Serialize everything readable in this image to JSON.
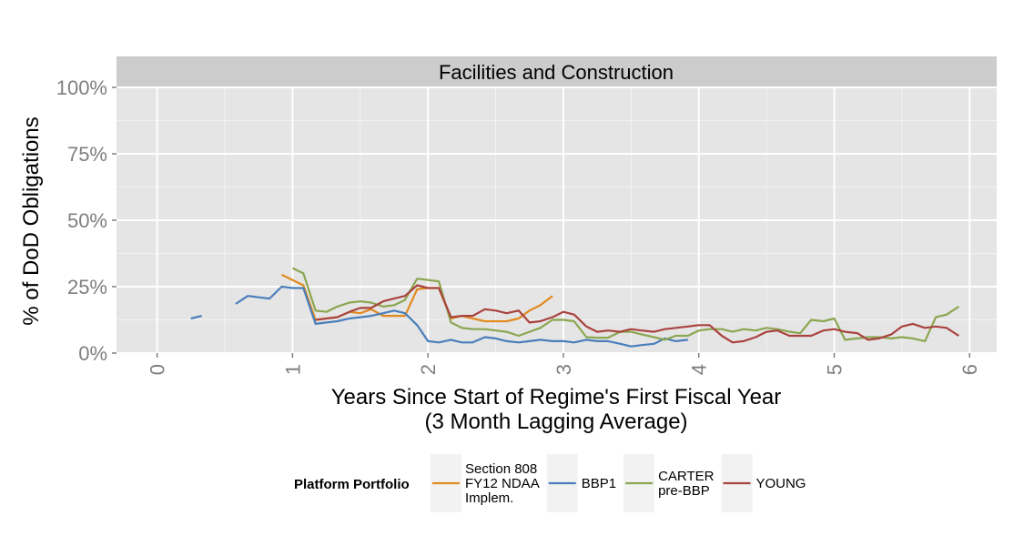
{
  "chart_data": {
    "type": "line",
    "title": "",
    "panel_title": "Facilities and Construction",
    "xlabel_line1": "Years Since Start of Regime's First Fiscal Year",
    "xlabel_line2": "(3 Month Lagging Average)",
    "ylabel": "% of DoD Obligations",
    "xlim": [
      -0.3,
      6.2
    ],
    "ylim": [
      0,
      1.0
    ],
    "x_ticks": [
      0,
      1,
      2,
      3,
      4,
      5,
      6
    ],
    "x_tick_labels": [
      "0",
      "1",
      "2",
      "3",
      "4",
      "5",
      "6"
    ],
    "y_ticks": [
      0,
      0.25,
      0.5,
      0.75,
      1.0
    ],
    "y_tick_labels": [
      "0%",
      "25%",
      "50%",
      "75%",
      "100%"
    ],
    "grid": true,
    "legend": {
      "title": "Platform Portfolio",
      "position": "bottom",
      "entries": [
        {
          "label_lines": [
            "Section 808",
            "FY12 NDAA",
            "Implem."
          ],
          "color": "#E08A1E"
        },
        {
          "label_lines": [
            "BBP1"
          ],
          "color": "#4A7EBB"
        },
        {
          "label_lines": [
            "CARTER",
            "pre-BBP"
          ],
          "color": "#8BA650"
        },
        {
          "label_lines": [
            "YOUNG"
          ],
          "color": "#A9433F"
        }
      ]
    },
    "series": [
      {
        "name": "Section 808 FY12 NDAA Implem.",
        "color": "#E08A1E",
        "segments": [
          [
            [
              0.92,
              0.295
            ],
            [
              1.0,
              0.275
            ],
            [
              1.08,
              0.255
            ],
            [
              1.17,
              0.125
            ],
            [
              1.25,
              0.13
            ],
            [
              1.33,
              0.135
            ],
            [
              1.42,
              0.155
            ],
            [
              1.5,
              0.15
            ],
            [
              1.58,
              0.165
            ],
            [
              1.67,
              0.14
            ],
            [
              1.75,
              0.14
            ],
            [
              1.83,
              0.14
            ],
            [
              1.92,
              0.24
            ],
            [
              2.0,
              0.245
            ],
            [
              2.08,
              0.245
            ],
            [
              2.17,
              0.13
            ],
            [
              2.25,
              0.14
            ],
            [
              2.33,
              0.13
            ],
            [
              2.42,
              0.12
            ],
            [
              2.5,
              0.12
            ],
            [
              2.58,
              0.12
            ],
            [
              2.67,
              0.13
            ],
            [
              2.75,
              0.16
            ],
            [
              2.83,
              0.18
            ],
            [
              2.92,
              0.215
            ]
          ]
        ]
      },
      {
        "name": "BBP1",
        "color": "#4A7EBB",
        "segments": [
          [
            [
              0.25,
              0.13
            ],
            [
              0.33,
              0.14
            ]
          ],
          [
            [
              0.58,
              0.185
            ],
            [
              0.67,
              0.215
            ],
            [
              0.75,
              0.21
            ],
            [
              0.83,
              0.205
            ],
            [
              0.92,
              0.25
            ],
            [
              1.0,
              0.245
            ],
            [
              1.08,
              0.245
            ],
            [
              1.17,
              0.11
            ],
            [
              1.25,
              0.115
            ],
            [
              1.33,
              0.12
            ],
            [
              1.42,
              0.13
            ],
            [
              1.5,
              0.135
            ],
            [
              1.58,
              0.14
            ],
            [
              1.67,
              0.15
            ],
            [
              1.75,
              0.16
            ],
            [
              1.83,
              0.15
            ],
            [
              1.92,
              0.105
            ],
            [
              2.0,
              0.045
            ],
            [
              2.08,
              0.04
            ],
            [
              2.17,
              0.05
            ],
            [
              2.25,
              0.04
            ],
            [
              2.33,
              0.04
            ],
            [
              2.42,
              0.06
            ],
            [
              2.5,
              0.055
            ],
            [
              2.58,
              0.045
            ],
            [
              2.67,
              0.04
            ],
            [
              2.75,
              0.045
            ],
            [
              2.83,
              0.05
            ],
            [
              2.92,
              0.045
            ],
            [
              3.0,
              0.045
            ],
            [
              3.08,
              0.04
            ],
            [
              3.17,
              0.05
            ],
            [
              3.25,
              0.045
            ],
            [
              3.33,
              0.045
            ],
            [
              3.42,
              0.035
            ],
            [
              3.5,
              0.025
            ],
            [
              3.58,
              0.03
            ],
            [
              3.67,
              0.035
            ],
            [
              3.75,
              0.055
            ],
            [
              3.83,
              0.045
            ],
            [
              3.92,
              0.05
            ]
          ]
        ]
      },
      {
        "name": "CARTER pre-BBP",
        "color": "#8BA650",
        "segments": [
          [
            [
              1.0,
              0.32
            ],
            [
              1.08,
              0.3
            ],
            [
              1.17,
              0.16
            ],
            [
              1.25,
              0.155
            ],
            [
              1.33,
              0.175
            ],
            [
              1.42,
              0.19
            ],
            [
              1.5,
              0.195
            ],
            [
              1.58,
              0.19
            ],
            [
              1.67,
              0.175
            ],
            [
              1.75,
              0.18
            ],
            [
              1.83,
              0.2
            ],
            [
              1.92,
              0.28
            ],
            [
              2.0,
              0.275
            ],
            [
              2.08,
              0.27
            ],
            [
              2.17,
              0.115
            ],
            [
              2.25,
              0.095
            ],
            [
              2.33,
              0.09
            ],
            [
              2.42,
              0.09
            ],
            [
              2.5,
              0.085
            ],
            [
              2.58,
              0.08
            ],
            [
              2.67,
              0.065
            ],
            [
              2.75,
              0.08
            ],
            [
              2.83,
              0.095
            ],
            [
              2.92,
              0.125
            ],
            [
              3.0,
              0.125
            ],
            [
              3.08,
              0.12
            ],
            [
              3.17,
              0.06
            ],
            [
              3.25,
              0.058
            ],
            [
              3.33,
              0.058
            ],
            [
              3.42,
              0.08
            ],
            [
              3.5,
              0.08
            ],
            [
              3.58,
              0.07
            ],
            [
              3.67,
              0.06
            ],
            [
              3.75,
              0.05
            ],
            [
              3.83,
              0.065
            ],
            [
              3.92,
              0.065
            ],
            [
              4.0,
              0.085
            ],
            [
              4.08,
              0.09
            ],
            [
              4.17,
              0.09
            ],
            [
              4.25,
              0.08
            ],
            [
              4.33,
              0.09
            ],
            [
              4.42,
              0.085
            ],
            [
              4.5,
              0.095
            ],
            [
              4.58,
              0.09
            ],
            [
              4.67,
              0.08
            ],
            [
              4.75,
              0.075
            ],
            [
              4.83,
              0.125
            ],
            [
              4.92,
              0.12
            ],
            [
              5.0,
              0.13
            ],
            [
              5.08,
              0.05
            ],
            [
              5.17,
              0.055
            ],
            [
              5.25,
              0.06
            ],
            [
              5.33,
              0.06
            ],
            [
              5.42,
              0.055
            ],
            [
              5.5,
              0.06
            ],
            [
              5.58,
              0.055
            ],
            [
              5.67,
              0.045
            ],
            [
              5.75,
              0.135
            ],
            [
              5.83,
              0.145
            ],
            [
              5.92,
              0.175
            ]
          ]
        ]
      },
      {
        "name": "YOUNG",
        "color": "#A9433F",
        "segments": [
          [
            [
              1.17,
              0.125
            ],
            [
              1.25,
              0.13
            ],
            [
              1.33,
              0.135
            ],
            [
              1.42,
              0.155
            ],
            [
              1.5,
              0.17
            ],
            [
              1.58,
              0.17
            ],
            [
              1.67,
              0.195
            ],
            [
              1.75,
              0.205
            ],
            [
              1.83,
              0.215
            ],
            [
              1.92,
              0.255
            ],
            [
              2.0,
              0.245
            ],
            [
              2.08,
              0.245
            ],
            [
              2.17,
              0.135
            ],
            [
              2.25,
              0.14
            ],
            [
              2.33,
              0.14
            ],
            [
              2.42,
              0.165
            ],
            [
              2.5,
              0.16
            ],
            [
              2.58,
              0.15
            ],
            [
              2.67,
              0.16
            ],
            [
              2.75,
              0.115
            ],
            [
              2.83,
              0.12
            ],
            [
              2.92,
              0.135
            ],
            [
              3.0,
              0.155
            ],
            [
              3.08,
              0.145
            ],
            [
              3.17,
              0.1
            ],
            [
              3.25,
              0.08
            ],
            [
              3.33,
              0.085
            ],
            [
              3.42,
              0.08
            ],
            [
              3.5,
              0.09
            ],
            [
              3.58,
              0.085
            ],
            [
              3.67,
              0.08
            ],
            [
              3.75,
              0.09
            ],
            [
              3.83,
              0.095
            ],
            [
              3.92,
              0.1
            ],
            [
              4.0,
              0.105
            ],
            [
              4.08,
              0.105
            ],
            [
              4.17,
              0.065
            ],
            [
              4.25,
              0.04
            ],
            [
              4.33,
              0.045
            ],
            [
              4.42,
              0.06
            ],
            [
              4.5,
              0.08
            ],
            [
              4.58,
              0.085
            ],
            [
              4.67,
              0.065
            ],
            [
              4.75,
              0.065
            ],
            [
              4.83,
              0.065
            ],
            [
              4.92,
              0.085
            ],
            [
              5.0,
              0.09
            ],
            [
              5.08,
              0.08
            ],
            [
              5.17,
              0.075
            ],
            [
              5.25,
              0.05
            ],
            [
              5.33,
              0.055
            ],
            [
              5.42,
              0.07
            ],
            [
              5.5,
              0.1
            ],
            [
              5.58,
              0.11
            ],
            [
              5.67,
              0.095
            ],
            [
              5.75,
              0.1
            ],
            [
              5.83,
              0.095
            ],
            [
              5.92,
              0.065
            ]
          ]
        ]
      }
    ]
  }
}
